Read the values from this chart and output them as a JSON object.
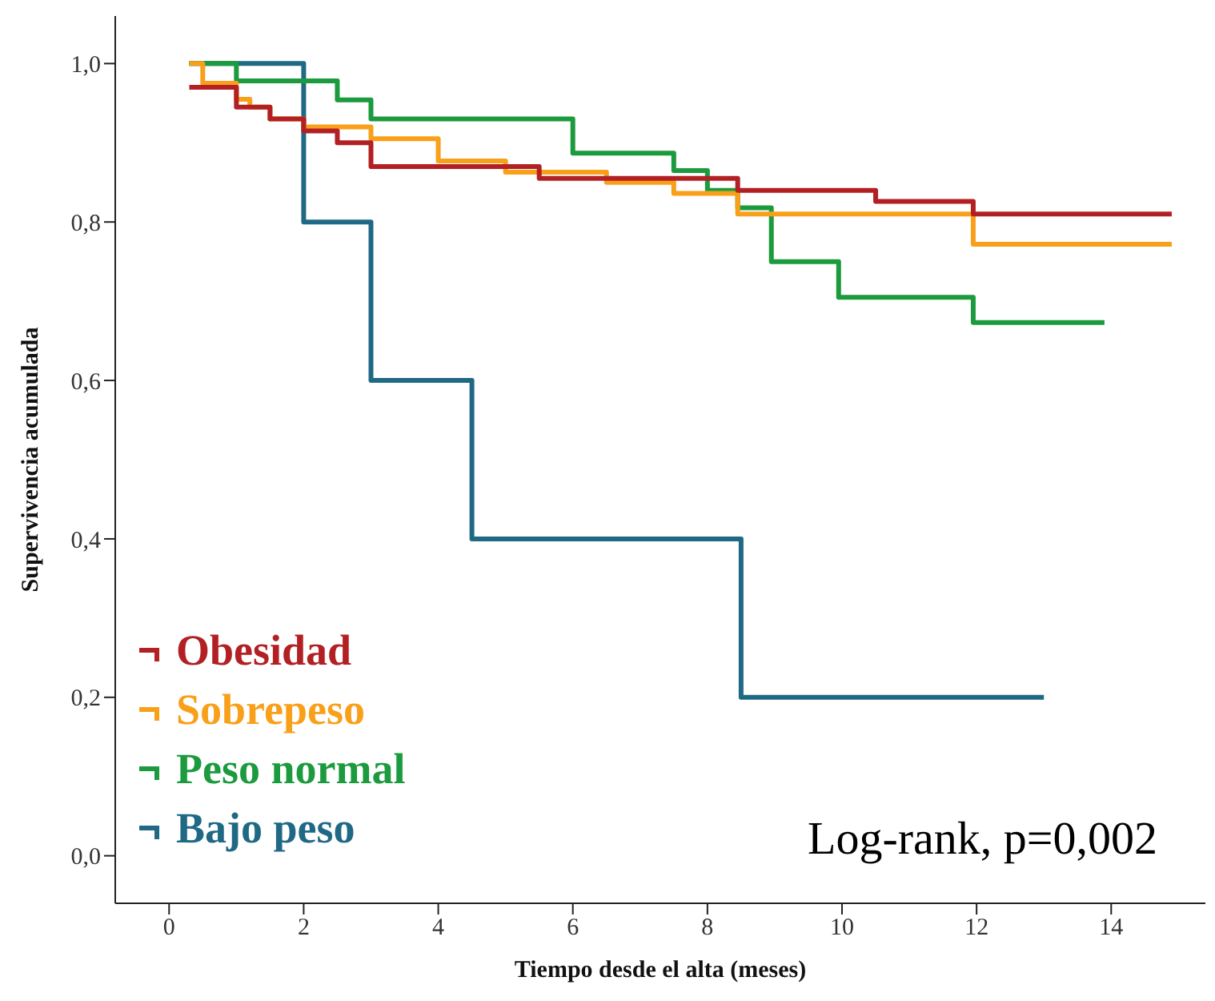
{
  "chart_data": {
    "type": "step",
    "xlabel": "Tiempo desde el alta (meses)",
    "ylabel": "Supervivencia acumulada",
    "xlim": [
      -0.8,
      15.4
    ],
    "ylim": [
      -0.06,
      1.06
    ],
    "xticks": [
      0,
      2,
      4,
      6,
      8,
      10,
      12,
      14
    ],
    "yticks": [
      {
        "value": 0,
        "label": "0,0"
      },
      {
        "value": 0.2,
        "label": "0,2"
      },
      {
        "value": 0.4,
        "label": "0,4"
      },
      {
        "value": 0.6,
        "label": "0,6"
      },
      {
        "value": 0.8,
        "label": "0,8"
      },
      {
        "value": 1,
        "label": "1,0"
      }
    ],
    "grid": false,
    "legend": "bottom left",
    "marker": "none",
    "line_style": "solid",
    "annotations": [
      {
        "text": "Log-rank, p=0,002"
      }
    ],
    "series": [
      {
        "name": "Obesidad",
        "color": "#b22024",
        "x": [
          0.3,
          1.0,
          1.5,
          2.0,
          2.5,
          3.0,
          5.5,
          8.45,
          10.5,
          11.95,
          14.9
        ],
        "values": [
          0.97,
          0.945,
          0.93,
          0.915,
          0.9,
          0.87,
          0.855,
          0.84,
          0.826,
          0.81,
          0.81
        ]
      },
      {
        "name": "Sobrepeso",
        "color": "#f9a01b",
        "x": [
          0.3,
          0.5,
          1.0,
          1.2,
          1.5,
          2.0,
          3.0,
          4.0,
          5.0,
          6.5,
          7.5,
          8.45,
          11.95,
          14.9
        ],
        "values": [
          1.0,
          0.975,
          0.955,
          0.945,
          0.93,
          0.92,
          0.905,
          0.877,
          0.863,
          0.85,
          0.836,
          0.81,
          0.772,
          0.772
        ]
      },
      {
        "name": "Peso normal",
        "color": "#1c9a3e",
        "x": [
          0.3,
          1.0,
          2.5,
          3.0,
          6.0,
          7.5,
          8.0,
          8.45,
          8.95,
          9.95,
          11.95,
          13.9
        ],
        "values": [
          1.0,
          0.978,
          0.954,
          0.93,
          0.887,
          0.865,
          0.84,
          0.818,
          0.75,
          0.705,
          0.673,
          0.673
        ]
      },
      {
        "name": "Bajo peso",
        "color": "#1f6985",
        "x": [
          0.3,
          2.0,
          3.0,
          4.5,
          8.5,
          13.0
        ],
        "values": [
          1.0,
          0.8,
          0.6,
          0.4,
          0.2,
          0.2
        ]
      }
    ]
  }
}
